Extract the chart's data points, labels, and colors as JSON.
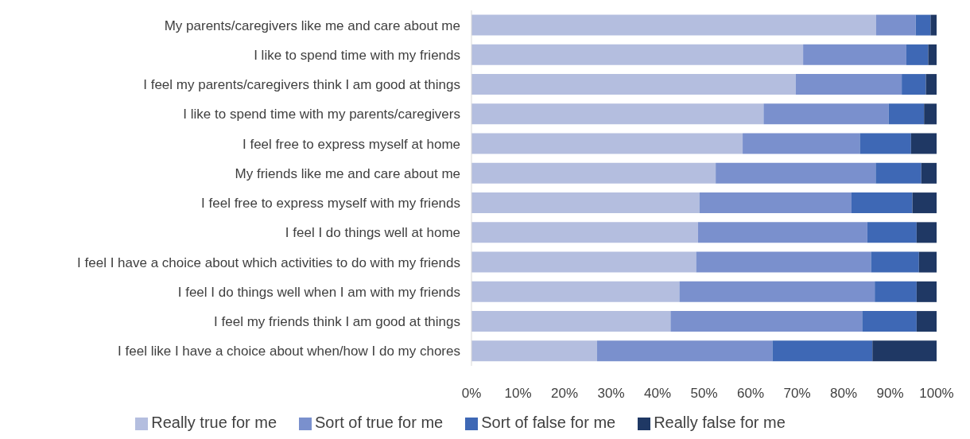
{
  "chart_data": {
    "type": "bar",
    "orientation": "horizontal",
    "stacked": true,
    "categories": [
      "My parents/caregivers like me and care about me",
      "I like to spend time with my friends",
      "I feel my parents/caregivers think I am good at things",
      "I like to spend time with my parents/caregivers",
      "I feel free to express myself at home",
      "My friends like me and care about me",
      "I feel free to express myself with my friends",
      "I feel I do things well at home",
      "I feel I have a choice about which activities to do with my friends",
      "I feel I do things well when I am with my friends",
      "I feel my friends think I am good at things",
      "I feel like I have a choice about when/how I do my chores"
    ],
    "series": [
      {
        "name": "Really true for me",
        "color": "#b4bedf",
        "values": [
          87,
          71.3,
          69.7,
          62.8,
          58.3,
          52.5,
          49,
          48.7,
          48.3,
          44.7,
          42.8,
          27
        ]
      },
      {
        "name": "Sort of true for me",
        "color": "#7a90cd",
        "values": [
          8.5,
          22.2,
          22.8,
          26.9,
          25.2,
          34.4,
          32.7,
          36.4,
          37.6,
          42,
          41.2,
          37.7
        ]
      },
      {
        "name": "Sort of false for me",
        "color": "#3e68b5",
        "values": [
          3.2,
          4.7,
          5.2,
          7.6,
          11,
          9.8,
          13.1,
          10.6,
          10.3,
          9,
          11.7,
          21.5
        ]
      },
      {
        "name": "Really false for me",
        "color": "#1f3864",
        "values": [
          1.3,
          1.8,
          2.3,
          2.7,
          5.5,
          3.3,
          5.2,
          4.3,
          3.8,
          4.3,
          4.3,
          13.8
        ]
      }
    ],
    "xlim": [
      0,
      100
    ],
    "xticks": [
      {
        "value": 0,
        "label": "0%"
      },
      {
        "value": 10,
        "label": "10%"
      },
      {
        "value": 20,
        "label": "20%"
      },
      {
        "value": 30,
        "label": "30%"
      },
      {
        "value": 40,
        "label": "40%"
      },
      {
        "value": 50,
        "label": "50%"
      },
      {
        "value": 60,
        "label": "60%"
      },
      {
        "value": 70,
        "label": "70%"
      },
      {
        "value": 80,
        "label": "80%"
      },
      {
        "value": 90,
        "label": "90%"
      },
      {
        "value": 100,
        "label": "100%"
      }
    ],
    "grid": false,
    "legend": "bottom"
  }
}
